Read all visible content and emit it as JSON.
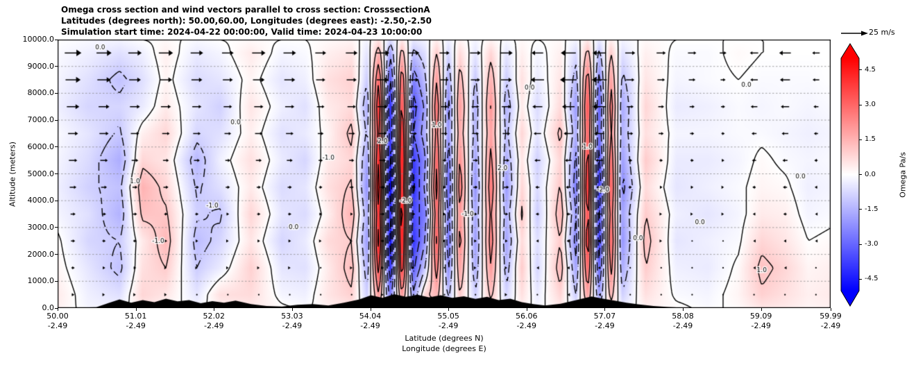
{
  "title": {
    "line1": "Omega cross section and wind vectors parallel to cross section: CrosssectionA",
    "line2": "Latitudes (degrees north): 50.00,60.00, Longitudes (degrees east): -2.50,-2.50",
    "line3": "Simulation start time: 2024-04-22 00:00:00, Valid time: 2024-04-23 10:00:00"
  },
  "axes": {
    "y_label": "Altitude (meters)",
    "x_label_line1": "Latitude (degrees N)",
    "x_label_line2": "Longitude (degrees E)",
    "y_ticks": [
      {
        "label": "0.0",
        "value": 0
      },
      {
        "label": "1000.0",
        "value": 1000
      },
      {
        "label": "2000.0",
        "value": 2000
      },
      {
        "label": "3000.0",
        "value": 3000
      },
      {
        "label": "4000.0",
        "value": 4000
      },
      {
        "label": "5000.0",
        "value": 5000
      },
      {
        "label": "6000.0",
        "value": 6000
      },
      {
        "label": "7000.0",
        "value": 7000
      },
      {
        "label": "8000.0",
        "value": 8000
      },
      {
        "label": "9000.0",
        "value": 9000
      },
      {
        "label": "10000.0",
        "value": 10000
      }
    ],
    "x_ticks": [
      {
        "lat": "50.00",
        "lon": "-2.49",
        "value": 50.0
      },
      {
        "lat": "51.01",
        "lon": "-2.49",
        "value": 51.01
      },
      {
        "lat": "52.02",
        "lon": "-2.49",
        "value": 52.02
      },
      {
        "lat": "53.03",
        "lon": "-2.49",
        "value": 53.03
      },
      {
        "lat": "54.04",
        "lon": "-2.49",
        "value": 54.04
      },
      {
        "lat": "55.05",
        "lon": "-2.49",
        "value": 55.05
      },
      {
        "lat": "56.06",
        "lon": "-2.49",
        "value": 56.06
      },
      {
        "lat": "57.07",
        "lon": "-2.49",
        "value": 57.07
      },
      {
        "lat": "58.08",
        "lon": "-2.49",
        "value": 58.08
      },
      {
        "lat": "59.09",
        "lon": "-2.49",
        "value": 59.09
      },
      {
        "lat": "59.99",
        "lon": "-2.49",
        "value": 59.99
      }
    ]
  },
  "colorbar": {
    "label": "Omega Pa/s",
    "ticks": [
      {
        "label": "4.5",
        "value": 4.5
      },
      {
        "label": "3.0",
        "value": 3.0
      },
      {
        "label": "1.5",
        "value": 1.5
      },
      {
        "label": "0.0",
        "value": 0.0
      },
      {
        "label": "-1.5",
        "value": -1.5
      },
      {
        "label": "-3.0",
        "value": -3.0
      },
      {
        "label": "-4.5",
        "value": -4.5
      }
    ],
    "colormap": "bwr",
    "color_positive": "#ff0000",
    "color_mid": "#ffffff",
    "color_negative": "#0000ff"
  },
  "quiver_key": {
    "label": "25 m/s",
    "speed_m_s": 25
  },
  "chart_data": {
    "type": "heatmap",
    "title": "Omega cross section and wind vectors parallel to cross section: CrosssectionA",
    "xlabel": "Latitude (degrees N) / Longitude (degrees E)",
    "ylabel": "Altitude (meters)",
    "xlim": [
      50.0,
      59.99
    ],
    "ylim": [
      0,
      10000
    ],
    "vmin": -5,
    "vmax": 5,
    "grid": true,
    "lats": [
      50.0,
      50.4,
      50.8,
      51.1,
      51.4,
      51.8,
      52.1,
      52.5,
      52.9,
      53.2,
      53.5,
      53.8,
      54.0,
      54.15,
      54.3,
      54.45,
      54.6,
      54.75,
      54.9,
      55.05,
      55.2,
      55.4,
      55.6,
      55.8,
      56.0,
      56.2,
      56.5,
      56.7,
      56.85,
      57.0,
      57.15,
      57.3,
      57.6,
      58.0,
      58.4,
      58.8,
      59.1,
      59.4,
      59.7,
      60.0
    ],
    "alts": [
      0,
      500,
      1500,
      2500,
      3500,
      4500,
      5500,
      6500,
      7500,
      8500,
      9500,
      10000
    ],
    "omega": [
      [
        0.3,
        -0.2,
        -0.3,
        0.5,
        0.2,
        -0.2,
        0.3,
        0.4,
        0.1,
        -0.1,
        0.3,
        0.5,
        -0.4,
        1.0,
        -1.0,
        0.8,
        -0.8,
        0.4,
        0.6,
        -0.5,
        0.5,
        -0.4,
        0.6,
        -0.3,
        0.3,
        -0.2,
        0.4,
        -0.4,
        0.8,
        -0.8,
        0.6,
        -0.4,
        0.3,
        0.1,
        -0.1,
        0.1,
        0.5,
        0.4,
        0.2,
        0.3
      ],
      [
        0.4,
        -0.3,
        -0.6,
        0.8,
        0.5,
        -0.5,
        0.6,
        0.7,
        -0.2,
        -0.3,
        0.5,
        0.9,
        -0.9,
        2.0,
        -2.5,
        2.0,
        -1.8,
        0.8,
        1.4,
        -1.2,
        1.0,
        -0.9,
        1.2,
        -0.8,
        0.6,
        -0.4,
        0.8,
        -1.0,
        1.8,
        -1.8,
        1.4,
        -0.9,
        0.6,
        -0.1,
        -0.2,
        0.2,
        0.9,
        0.6,
        0.3,
        0.4
      ],
      [
        0.2,
        -0.5,
        -1.2,
        0.6,
        1.0,
        -1.0,
        -0.4,
        0.9,
        -0.5,
        -0.6,
        0.4,
        1.3,
        -1.5,
        3.5,
        -4.0,
        3.8,
        -3.2,
        -1.0,
        2.5,
        -2.2,
        1.8,
        -1.6,
        2.0,
        -1.4,
        1.0,
        -0.8,
        1.4,
        -1.8,
        3.0,
        -3.0,
        2.4,
        -1.6,
        1.0,
        -0.3,
        -0.4,
        0.1,
        1.2,
        0.8,
        0.2,
        0.3
      ],
      [
        0.1,
        -0.8,
        -1.0,
        0.4,
        1.4,
        -1.3,
        -0.8,
        0.5,
        -0.8,
        -0.4,
        0.7,
        1.0,
        -2.0,
        4.5,
        -4.8,
        4.5,
        -4.0,
        -2.0,
        3.2,
        -2.8,
        2.4,
        -2.0,
        2.5,
        -1.8,
        0.7,
        -0.6,
        1.0,
        -2.4,
        3.8,
        -3.8,
        3.0,
        -2.1,
        1.3,
        -0.5,
        -0.3,
        -0.1,
        0.8,
        0.5,
        0.0,
        0.1
      ],
      [
        -0.2,
        -0.6,
        -1.5,
        1.2,
        1.1,
        -0.9,
        -1.1,
        0.8,
        -0.5,
        -0.7,
        0.3,
        1.5,
        -1.6,
        4.0,
        -4.2,
        4.8,
        -3.5,
        -2.5,
        2.8,
        -2.4,
        2.0,
        -1.7,
        2.2,
        -1.5,
        1.1,
        -1.0,
        1.5,
        -2.0,
        3.4,
        -3.4,
        2.6,
        -1.8,
        1.0,
        -0.3,
        -0.5,
        -0.2,
        0.4,
        0.3,
        -0.2,
        -0.1
      ],
      [
        -0.3,
        -0.9,
        -1.2,
        1.5,
        0.8,
        -1.1,
        -0.6,
        0.4,
        -0.7,
        -0.5,
        0.6,
        1.1,
        -2.2,
        4.8,
        -5.0,
        4.2,
        -4.2,
        -1.8,
        3.4,
        -3.0,
        2.6,
        -2.2,
        2.7,
        -2.0,
        0.8,
        -0.7,
        1.1,
        -2.6,
        4.0,
        -4.0,
        3.2,
        -2.3,
        0.7,
        -0.5,
        -0.3,
        -0.1,
        0.2,
        0.1,
        -0.3,
        -0.2
      ],
      [
        -0.2,
        -0.7,
        -1.6,
        0.8,
        0.5,
        -1.4,
        -0.3,
        0.6,
        -0.4,
        -0.8,
        0.4,
        0.8,
        -1.8,
        4.2,
        -4.5,
        4.6,
        -3.8,
        -2.2,
        3.0,
        -2.6,
        2.2,
        -1.8,
        2.3,
        -1.6,
        0.5,
        -0.9,
        0.8,
        -2.2,
        3.6,
        -3.5,
        2.8,
        -1.9,
        1.0,
        -0.4,
        -0.4,
        -0.2,
        0.1,
        -0.1,
        -0.2,
        -0.1
      ],
      [
        -0.1,
        -0.5,
        -1.1,
        0.3,
        0.8,
        -0.8,
        -0.6,
        0.3,
        -0.6,
        -0.4,
        0.2,
        1.2,
        -1.2,
        3.5,
        -3.8,
        4.0,
        -3.0,
        -1.5,
        2.4,
        -2.0,
        1.6,
        -1.4,
        1.8,
        -1.2,
        0.8,
        -0.5,
        1.2,
        -1.6,
        3.0,
        -2.8,
        2.2,
        -1.5,
        0.6,
        -0.2,
        -0.2,
        -0.1,
        -0.1,
        -0.2,
        -0.3,
        -0.2
      ],
      [
        -0.3,
        -0.8,
        -0.8,
        -0.4,
        0.4,
        -0.5,
        -0.9,
        0.5,
        -0.3,
        -0.6,
        0.4,
        0.7,
        -1.6,
        4.0,
        -4.2,
        3.5,
        -3.4,
        -1.8,
        2.8,
        -2.4,
        2.0,
        -1.6,
        2.1,
        -1.5,
        0.4,
        -0.7,
        0.7,
        -2.0,
        3.4,
        -3.2,
        2.6,
        -1.7,
        0.8,
        -0.4,
        -0.3,
        -0.1,
        -0.2,
        -0.1,
        -0.2,
        -0.1
      ],
      [
        -0.2,
        -0.6,
        -1.2,
        -0.6,
        0.2,
        -0.7,
        -0.5,
        0.2,
        -0.5,
        -0.3,
        0.6,
        0.9,
        -1.0,
        3.0,
        -3.2,
        2.8,
        -2.5,
        -1.2,
        2.0,
        -1.6,
        1.4,
        -1.1,
        1.5,
        -1.0,
        0.6,
        -0.4,
        0.5,
        -1.4,
        2.6,
        -2.4,
        1.9,
        -1.2,
        0.5,
        -0.2,
        -0.1,
        0.0,
        -0.1,
        -0.1,
        -0.1,
        0.0
      ],
      [
        -0.1,
        -0.3,
        -0.6,
        -0.3,
        0.3,
        -0.4,
        -0.2,
        0.4,
        -0.2,
        -0.1,
        0.3,
        0.5,
        -0.5,
        1.5,
        -1.8,
        1.4,
        -1.2,
        -0.6,
        1.0,
        -0.8,
        0.7,
        -0.5,
        0.8,
        -0.5,
        0.3,
        -0.2,
        0.3,
        -0.7,
        1.3,
        -1.2,
        1.0,
        -0.6,
        0.3,
        -0.1,
        -0.1,
        0.1,
        0.0,
        0.0,
        0.0,
        0.0
      ],
      [
        0.0,
        -0.1,
        -0.2,
        0.0,
        0.1,
        -0.1,
        0.0,
        0.1,
        0.0,
        0.0,
        0.1,
        0.2,
        -0.2,
        0.5,
        -0.6,
        0.4,
        -0.4,
        -0.2,
        0.3,
        -0.3,
        0.2,
        -0.2,
        0.2,
        -0.1,
        0.1,
        0.0,
        0.1,
        -0.2,
        0.4,
        -0.4,
        0.3,
        -0.2,
        0.1,
        0.0,
        0.0,
        0.0,
        0.0,
        0.0,
        0.0,
        0.0
      ]
    ],
    "contour_levels_solid": [
      0,
      1,
      2,
      3,
      4
    ],
    "contour_levels_dashed": [
      -4,
      -3,
      -2,
      -1
    ],
    "contour_labels": [
      {
        "lat": 50.55,
        "alt": 9700,
        "text": "0.0"
      },
      {
        "lat": 51.0,
        "alt": 4700,
        "text": "1.0"
      },
      {
        "lat": 51.3,
        "alt": 2500,
        "text": "-1.0"
      },
      {
        "lat": 52.0,
        "alt": 3800,
        "text": "-1.0"
      },
      {
        "lat": 52.3,
        "alt": 6900,
        "text": "0.0"
      },
      {
        "lat": 53.05,
        "alt": 3000,
        "text": "0.0"
      },
      {
        "lat": 53.5,
        "alt": 5600,
        "text": "-1.0"
      },
      {
        "lat": 54.2,
        "alt": 6200,
        "text": "2.0"
      },
      {
        "lat": 54.5,
        "alt": 4000,
        "text": "-2.0"
      },
      {
        "lat": 54.9,
        "alt": 6800,
        "text": "1.0"
      },
      {
        "lat": 55.3,
        "alt": 3500,
        "text": "-1.0"
      },
      {
        "lat": 55.75,
        "alt": 5200,
        "text": "2.0"
      },
      {
        "lat": 56.1,
        "alt": 8200,
        "text": "0.0"
      },
      {
        "lat": 56.85,
        "alt": 6000,
        "text": "1.0"
      },
      {
        "lat": 57.05,
        "alt": 4400,
        "text": "-2.0"
      },
      {
        "lat": 57.5,
        "alt": 2600,
        "text": "0.0"
      },
      {
        "lat": 58.3,
        "alt": 3200,
        "text": "0.0"
      },
      {
        "lat": 58.9,
        "alt": 8300,
        "text": "0.0"
      },
      {
        "lat": 59.1,
        "alt": 1400,
        "text": "1.0"
      },
      {
        "lat": 59.6,
        "alt": 4900,
        "text": "0.0"
      }
    ],
    "wind": {
      "units": "m/s",
      "lats": [
        50.2,
        50.6,
        51.0,
        51.4,
        51.8,
        52.2,
        52.6,
        53.0,
        53.4,
        53.8,
        54.2,
        54.6,
        55.0,
        55.4,
        55.8,
        56.2,
        56.6,
        57.0,
        57.4,
        57.8,
        58.2,
        58.6,
        59.0,
        59.4,
        59.8
      ],
      "alts": [
        500,
        1500,
        2500,
        3500,
        4500,
        5500,
        6500,
        7500,
        8500,
        9500
      ],
      "u": [
        [
          3,
          2,
          2,
          2,
          1,
          1,
          1,
          1,
          1,
          1,
          2,
          1,
          1,
          1,
          2,
          -1,
          -2,
          -2,
          1,
          1,
          0,
          0,
          -1,
          -1,
          -1
        ],
        [
          4,
          3,
          3,
          2,
          2,
          2,
          2,
          2,
          1,
          2,
          3,
          2,
          1,
          2,
          2,
          -2,
          -3,
          -3,
          1,
          1,
          1,
          1,
          -2,
          -2,
          -1
        ],
        [
          5,
          4,
          4,
          3,
          3,
          2,
          3,
          3,
          2,
          2,
          4,
          3,
          2,
          3,
          3,
          -3,
          -4,
          -4,
          2,
          2,
          1,
          1,
          -2,
          -3,
          -2
        ],
        [
          6,
          5,
          5,
          4,
          4,
          3,
          4,
          4,
          3,
          3,
          5,
          4,
          3,
          4,
          4,
          -4,
          -5,
          -5,
          3,
          2,
          2,
          2,
          -3,
          -4,
          -2
        ],
        [
          8,
          7,
          6,
          6,
          5,
          5,
          5,
          5,
          4,
          5,
          6,
          5,
          4,
          5,
          6,
          -5,
          -6,
          -7,
          4,
          3,
          3,
          2,
          -4,
          -5,
          -3
        ],
        [
          10,
          9,
          8,
          7,
          7,
          6,
          7,
          7,
          5,
          6,
          8,
          6,
          5,
          6,
          7,
          -7,
          -8,
          -9,
          5,
          4,
          4,
          3,
          -5,
          -6,
          -4
        ],
        [
          12,
          11,
          10,
          9,
          9,
          8,
          9,
          9,
          7,
          8,
          10,
          8,
          7,
          8,
          9,
          -9,
          -11,
          -12,
          7,
          6,
          5,
          4,
          -6,
          -8,
          -5
        ],
        [
          15,
          13,
          12,
          12,
          11,
          10,
          11,
          11,
          9,
          10,
          12,
          10,
          8,
          9,
          11,
          -12,
          -15,
          -16,
          8,
          7,
          6,
          5,
          -8,
          -10,
          -6
        ],
        [
          18,
          16,
          14,
          15,
          13,
          12,
          14,
          13,
          11,
          12,
          14,
          12,
          10,
          11,
          13,
          -16,
          -20,
          -18,
          10,
          9,
          8,
          6,
          -9,
          -12,
          -8
        ],
        [
          20,
          18,
          16,
          17,
          15,
          14,
          16,
          15,
          13,
          14,
          16,
          14,
          12,
          13,
          15,
          -14,
          -18,
          -16,
          12,
          11,
          10,
          8,
          -10,
          -14,
          -9
        ]
      ]
    },
    "terrain": {
      "lats": [
        50.0,
        50.5,
        50.65,
        50.8,
        50.95,
        51.1,
        51.25,
        51.4,
        51.55,
        51.7,
        51.85,
        52.0,
        52.15,
        52.3,
        52.5,
        52.7,
        52.9,
        53.1,
        53.3,
        53.5,
        53.7,
        53.9,
        54.05,
        54.2,
        54.35,
        54.5,
        54.65,
        54.8,
        54.95,
        55.1,
        55.25,
        55.4,
        55.55,
        55.7,
        55.85,
        56.0,
        56.15,
        56.3,
        56.5,
        56.7,
        56.9,
        57.05,
        57.2,
        57.35,
        57.5,
        57.7,
        57.9,
        58.1,
        58.4,
        60.0
      ],
      "heights_m": [
        0,
        30,
        180,
        320,
        200,
        300,
        220,
        350,
        250,
        300,
        180,
        260,
        200,
        280,
        150,
        80,
        60,
        120,
        150,
        100,
        200,
        320,
        480,
        380,
        520,
        420,
        500,
        400,
        480,
        380,
        440,
        340,
        420,
        300,
        350,
        220,
        150,
        100,
        160,
        300,
        430,
        350,
        280,
        200,
        140,
        80,
        40,
        10,
        0,
        0
      ]
    }
  }
}
